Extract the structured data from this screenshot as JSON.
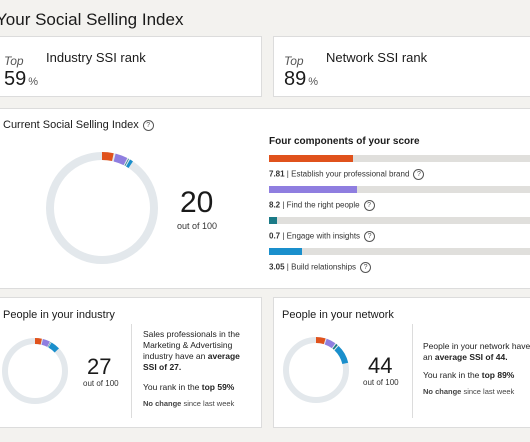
{
  "page": {
    "title": "Your Social Selling Index"
  },
  "industry_rank": {
    "top_label": "Top",
    "label": "Industry SSI rank",
    "value": "59",
    "unit": "%"
  },
  "network_rank": {
    "top_label": "Top",
    "label": "Network SSI rank",
    "value": "89",
    "unit": "%"
  },
  "current_ssi": {
    "heading": "Current Social Selling Index",
    "score": "20",
    "out_of": "out of 100",
    "components_heading": "Four components of your score",
    "components": [
      {
        "value": "7.81",
        "label": "Establish your professional brand",
        "fraction": 0.3124,
        "color": "#e0521c"
      },
      {
        "value": "8.2",
        "label": "Find the right people",
        "fraction": 0.328,
        "color": "#8f7ee0"
      },
      {
        "value": "0.7",
        "label": "Engage with insights",
        "fraction": 0.028,
        "color": "#1b7a87"
      },
      {
        "value": "3.05",
        "label": "Build relationships",
        "fraction": 0.122,
        "color": "#1a8fcc"
      }
    ]
  },
  "industry": {
    "heading": "People in your industry",
    "score": "27",
    "out_of": "out of 100",
    "text_before": "Sales professionals in the Marketing & Advertising industry have an",
    "avg_label": "average SSI of 27.",
    "rank_before": "You rank in the",
    "rank_value": "top 59%",
    "change_label": "No change",
    "change_suffix": "since last week",
    "segments": [
      7.81,
      8.2,
      0.7,
      10.29
    ]
  },
  "network": {
    "heading": "People in your network",
    "score": "44",
    "out_of": "out of 100",
    "text_before": "People in your network have an",
    "avg_label": "average SSI of 44.",
    "rank_before": "You rank in the",
    "rank_value": "top 89%",
    "change_label": "No change",
    "change_suffix": "since last week",
    "segments": [
      10.5,
      10.5,
      3.0,
      20.0
    ]
  },
  "colors": {
    "brand": "#e0521c",
    "find": "#8f7ee0",
    "engage": "#1b7a87",
    "build": "#1a8fcc",
    "track": "#e3e8ec"
  }
}
